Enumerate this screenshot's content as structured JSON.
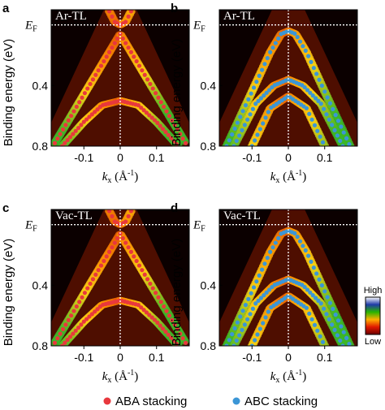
{
  "figure": {
    "y_axis_label": "Binding energy (eV)",
    "x_axis_label_main": "k",
    "x_axis_label_sub": "x",
    "x_axis_label_unit": " (Å",
    "x_axis_label_exp": "-1",
    "x_axis_label_close": ")",
    "fermi_label_main": "E",
    "fermi_label_sub": "F",
    "colorbar": {
      "high_label": "High",
      "low_label": "Low"
    },
    "legend": [
      {
        "label": "ABA stacking",
        "color": "#e8383d"
      },
      {
        "label": "ABC stacking",
        "color": "#3b96d6"
      }
    ]
  },
  "chart_data": [
    {
      "type": "scatter",
      "panel": "a",
      "sample": "Ar-TL",
      "stacking": "ABA",
      "marker_color": "#e8383d",
      "xlim": [
        -0.19,
        0.19
      ],
      "ylim": [
        0.8,
        -0.1
      ],
      "x_ticks": [
        "-0.1",
        "0",
        "0.1"
      ],
      "y_ticks": [
        "0.4",
        "0.8"
      ],
      "series": [
        {
          "k": [
            -0.18,
            -0.12,
            -0.06,
            -0.02,
            0.0,
            0.02,
            0.06,
            0.12,
            0.18
          ],
          "E": [
            0.78,
            0.54,
            0.3,
            0.14,
            0.06,
            0.14,
            0.3,
            0.54,
            0.78
          ]
        },
        {
          "k": [
            -0.16,
            -0.1,
            -0.05,
            0.0,
            0.05,
            0.1,
            0.16
          ],
          "E": [
            0.8,
            0.64,
            0.53,
            0.5,
            0.53,
            0.64,
            0.8
          ]
        },
        {
          "k": [
            -0.03,
            -0.015,
            0.0,
            0.015,
            0.03
          ],
          "E": [
            -0.09,
            -0.02,
            0.0,
            -0.02,
            -0.09
          ]
        }
      ]
    },
    {
      "type": "scatter",
      "panel": "b",
      "sample": "Ar-TL",
      "stacking": "ABC",
      "marker_color": "#3b96d6",
      "xlim": [
        -0.19,
        0.19
      ],
      "ylim": [
        0.8,
        -0.1
      ],
      "x_ticks": [
        "-0.1",
        "0",
        "0.1"
      ],
      "y_ticks": [
        "0.4",
        "0.8"
      ],
      "series": [
        {
          "k": [
            -0.17,
            -0.1,
            -0.05,
            -0.02,
            0.0,
            0.02,
            0.05,
            0.1,
            0.17
          ],
          "E": [
            0.8,
            0.44,
            0.18,
            0.06,
            0.04,
            0.06,
            0.18,
            0.44,
            0.8
          ]
        },
        {
          "k": [
            -0.15,
            -0.09,
            -0.04,
            0.0,
            0.04,
            0.09,
            0.15
          ],
          "E": [
            0.8,
            0.52,
            0.4,
            0.36,
            0.4,
            0.52,
            0.8
          ]
        },
        {
          "k": [
            -0.1,
            -0.05,
            0.0,
            0.05,
            0.1
          ],
          "E": [
            0.8,
            0.55,
            0.47,
            0.55,
            0.8
          ]
        }
      ]
    },
    {
      "type": "scatter",
      "panel": "c",
      "sample": "Vac-TL",
      "stacking": "ABA",
      "marker_color": "#e8383d",
      "xlim": [
        -0.19,
        0.19
      ],
      "ylim": [
        0.8,
        -0.1
      ],
      "x_ticks": [
        "-0.1",
        "0",
        "0.1"
      ],
      "y_ticks": [
        "0.4",
        "0.8"
      ],
      "series": [
        {
          "k": [
            -0.18,
            -0.12,
            -0.06,
            -0.02,
            0.0,
            0.02,
            0.06,
            0.12,
            0.18
          ],
          "E": [
            0.78,
            0.54,
            0.3,
            0.14,
            0.06,
            0.14,
            0.3,
            0.54,
            0.78
          ]
        },
        {
          "k": [
            -0.16,
            -0.1,
            -0.05,
            0.0,
            0.05,
            0.1,
            0.16
          ],
          "E": [
            0.8,
            0.64,
            0.53,
            0.5,
            0.53,
            0.64,
            0.8
          ]
        },
        {
          "k": [
            -0.03,
            -0.015,
            0.0,
            0.015,
            0.03
          ],
          "E": [
            -0.09,
            -0.02,
            0.0,
            -0.02,
            -0.09
          ]
        }
      ]
    },
    {
      "type": "scatter",
      "panel": "d",
      "sample": "Vac-TL",
      "stacking": "ABC",
      "marker_color": "#3b96d6",
      "xlim": [
        -0.19,
        0.19
      ],
      "ylim": [
        0.8,
        -0.1
      ],
      "x_ticks": [
        "-0.1",
        "0",
        "0.1"
      ],
      "y_ticks": [
        "0.4",
        "0.8"
      ],
      "series": [
        {
          "k": [
            -0.17,
            -0.1,
            -0.05,
            -0.02,
            0.0,
            0.02,
            0.05,
            0.1,
            0.17
          ],
          "E": [
            0.8,
            0.44,
            0.18,
            0.06,
            0.04,
            0.06,
            0.18,
            0.44,
            0.8
          ]
        },
        {
          "k": [
            -0.15,
            -0.09,
            -0.04,
            0.0,
            0.04,
            0.09,
            0.15
          ],
          "E": [
            0.8,
            0.52,
            0.4,
            0.36,
            0.4,
            0.52,
            0.8
          ]
        },
        {
          "k": [
            -0.1,
            -0.05,
            0.0,
            0.05,
            0.1
          ],
          "E": [
            0.8,
            0.55,
            0.47,
            0.55,
            0.8
          ]
        }
      ]
    }
  ]
}
